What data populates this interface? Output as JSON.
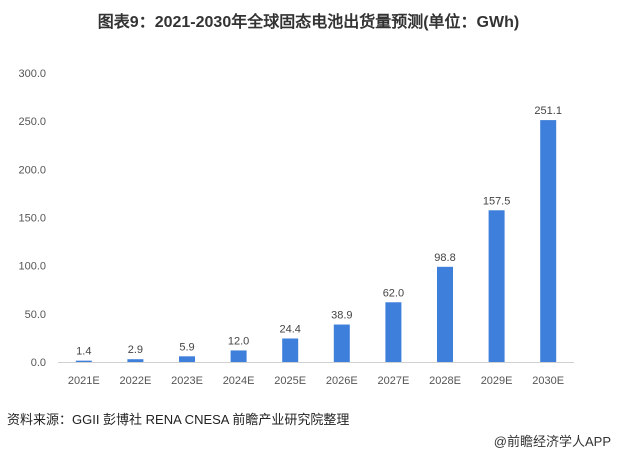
{
  "chart_data": {
    "type": "bar",
    "title": "图表9：2021-2030年全球固态电池出货量预测(单位：GWh)",
    "categories": [
      "2021E",
      "2022E",
      "2023E",
      "2024E",
      "2025E",
      "2026E",
      "2027E",
      "2028E",
      "2029E",
      "2030E"
    ],
    "values": [
      1.4,
      2.9,
      5.9,
      12.0,
      24.4,
      38.9,
      62.0,
      98.8,
      157.5,
      251.1
    ],
    "value_labels": [
      "1.4",
      "2.9",
      "5.9",
      "12.0",
      "24.4",
      "38.9",
      "62.0",
      "98.8",
      "157.5",
      "251.1"
    ],
    "ylim": [
      0,
      300
    ],
    "yticks": [
      "0.0",
      "50.0",
      "100.0",
      "150.0",
      "200.0",
      "250.0",
      "300.0"
    ],
    "xlabel": "",
    "ylabel": "",
    "grid": false,
    "bar_color": "#3e7fdb"
  },
  "footer": {
    "source": "资料来源：GGII 彭博社 RENA CNESA 前瞻产业研究院整理",
    "credit": "@前瞻经济学人APP"
  }
}
